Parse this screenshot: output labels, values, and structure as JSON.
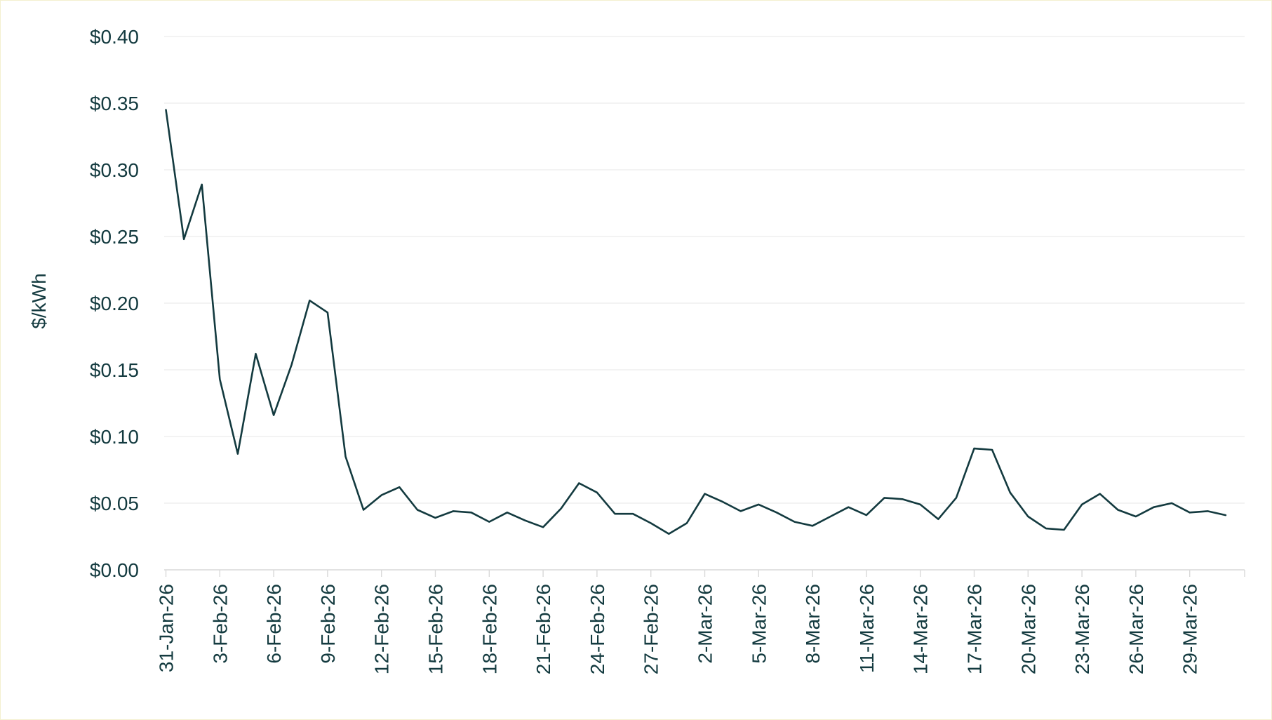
{
  "chart_data": {
    "type": "line",
    "title": "",
    "xlabel": "",
    "ylabel": "$/kWh",
    "ylim": [
      0,
      0.4
    ],
    "y_ticks": [
      0,
      0.05,
      0.1,
      0.15,
      0.2,
      0.25,
      0.3,
      0.35,
      0.4
    ],
    "y_tick_labels": [
      "$0.00",
      "$0.05",
      "$0.10",
      "$0.15",
      "$0.20",
      "$0.25",
      "$0.30",
      "$0.35",
      "$0.40"
    ],
    "x_tick_labels": [
      "31-Jan-26",
      "3-Feb-26",
      "6-Feb-26",
      "9-Feb-26",
      "12-Feb-26",
      "15-Feb-26",
      "18-Feb-26",
      "21-Feb-26",
      "24-Feb-26",
      "27-Feb-26",
      "2-Mar-26",
      "5-Mar-26",
      "8-Mar-26",
      "11-Mar-26",
      "14-Mar-26",
      "17-Mar-26",
      "20-Mar-26",
      "23-Mar-26",
      "26-Mar-26",
      "29-Mar-26"
    ],
    "grid": "horizontal",
    "line_color": "#133a3f",
    "series": [
      {
        "x": [
          "31-Jan-26",
          "1-Feb-26",
          "2-Feb-26",
          "3-Feb-26",
          "4-Feb-26",
          "5-Feb-26",
          "6-Feb-26",
          "7-Feb-26",
          "8-Feb-26",
          "9-Feb-26",
          "10-Feb-26",
          "11-Feb-26",
          "12-Feb-26",
          "13-Feb-26",
          "14-Feb-26",
          "15-Feb-26",
          "16-Feb-26",
          "17-Feb-26",
          "18-Feb-26",
          "19-Feb-26",
          "20-Feb-26",
          "21-Feb-26",
          "22-Feb-26",
          "23-Feb-26",
          "24-Feb-26",
          "25-Feb-26",
          "26-Feb-26",
          "27-Feb-26",
          "28-Feb-26",
          "1-Mar-26",
          "2-Mar-26",
          "3-Mar-26",
          "4-Mar-26",
          "5-Mar-26",
          "6-Mar-26",
          "7-Mar-26",
          "8-Mar-26",
          "9-Mar-26",
          "10-Mar-26",
          "11-Mar-26",
          "12-Mar-26",
          "13-Mar-26",
          "14-Mar-26",
          "15-Mar-26",
          "16-Mar-26",
          "17-Mar-26",
          "18-Mar-26",
          "19-Mar-26",
          "20-Mar-26",
          "21-Mar-26",
          "22-Mar-26",
          "23-Mar-26",
          "24-Mar-26",
          "25-Mar-26",
          "26-Mar-26",
          "27-Mar-26",
          "28-Mar-26",
          "29-Mar-26",
          "30-Mar-26",
          "31-Mar-26"
        ],
        "values": [
          0.345,
          0.248,
          0.289,
          0.143,
          0.087,
          0.162,
          0.116,
          0.154,
          0.202,
          0.193,
          0.085,
          0.045,
          0.056,
          0.062,
          0.045,
          0.039,
          0.044,
          0.043,
          0.036,
          0.043,
          0.037,
          0.032,
          0.046,
          0.065,
          0.058,
          0.042,
          0.042,
          0.035,
          0.027,
          0.035,
          0.057,
          0.051,
          0.044,
          0.049,
          0.043,
          0.036,
          0.033,
          0.04,
          0.047,
          0.041,
          0.054,
          0.053,
          0.049,
          0.038,
          0.054,
          0.091,
          0.09,
          0.058,
          0.04,
          0.031,
          0.03,
          0.049,
          0.057,
          0.045,
          0.04,
          0.047,
          0.05,
          0.043,
          0.044,
          0.041
        ]
      }
    ]
  }
}
